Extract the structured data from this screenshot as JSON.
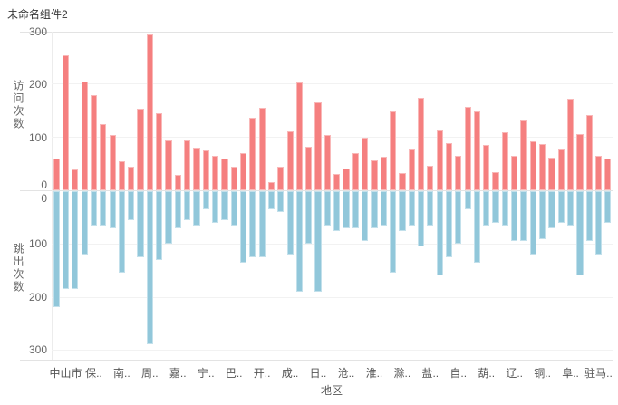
{
  "title": "未命名组件2",
  "colors": {
    "visits_bar": "#F57F7F",
    "bounce_bar": "#91C7DA",
    "grid_line": "#F2F2F2",
    "frame_line": "#E3E3E3",
    "tick_text": "#666666",
    "title_text": "#333333"
  },
  "axes": {
    "y_top_title": "访问次数",
    "y_bottom_title": "跳出次数",
    "x_title": "地区"
  },
  "chart_data": {
    "type": "bar",
    "subtype": "dual-mirrored-columns",
    "title": "未命名组件2",
    "xlabel": "地区",
    "grid": true,
    "num_bars": 60,
    "ylim_top": [
      0,
      300
    ],
    "ylim_bottom": [
      0,
      300
    ],
    "y_ticks_top": [
      0,
      100,
      200,
      300
    ],
    "y_ticks_bottom": [
      0,
      100,
      200,
      300
    ],
    "x_tick_labels": [
      "中山市",
      "保..",
      "南..",
      "周..",
      "嘉..",
      "宁..",
      "巴..",
      "开..",
      "成..",
      "日..",
      "沧..",
      "淮..",
      "滁..",
      "盐..",
      "自..",
      "葫..",
      "辽..",
      "铜..",
      "阜..",
      "驻马.."
    ],
    "x_tick_bar_indices": [
      1,
      4,
      7,
      10,
      13,
      16,
      19,
      22,
      25,
      28,
      31,
      34,
      37,
      40,
      43,
      46,
      49,
      52,
      55,
      58
    ],
    "series": [
      {
        "name": "访问次数",
        "axis": "top",
        "direction": "up",
        "color": "#F57F7F",
        "values": [
          60,
          255,
          40,
          205,
          180,
          125,
          105,
          55,
          45,
          155,
          295,
          145,
          95,
          30,
          95,
          80,
          75,
          65,
          60,
          45,
          70,
          137,
          156,
          15,
          44,
          112,
          204,
          82,
          167,
          104,
          31,
          42,
          70,
          100,
          57,
          64,
          150,
          33,
          78,
          175,
          46,
          113,
          90,
          66,
          158,
          150,
          86,
          34,
          110,
          65,
          133,
          93,
          87,
          61,
          77,
          173,
          107,
          142,
          65,
          60
        ]
      },
      {
        "name": "跳出次数",
        "axis": "bottom",
        "direction": "down",
        "color": "#91C7DA",
        "values": [
          220,
          185,
          185,
          120,
          65,
          65,
          70,
          155,
          55,
          125,
          290,
          130,
          100,
          70,
          55,
          65,
          35,
          60,
          55,
          65,
          135,
          125,
          125,
          35,
          40,
          120,
          190,
          100,
          190,
          65,
          75,
          70,
          70,
          95,
          70,
          65,
          155,
          75,
          65,
          105,
          65,
          160,
          125,
          100,
          35,
          135,
          65,
          60,
          65,
          95,
          95,
          120,
          90,
          70,
          60,
          65,
          160,
          95,
          120,
          60
        ]
      }
    ]
  }
}
